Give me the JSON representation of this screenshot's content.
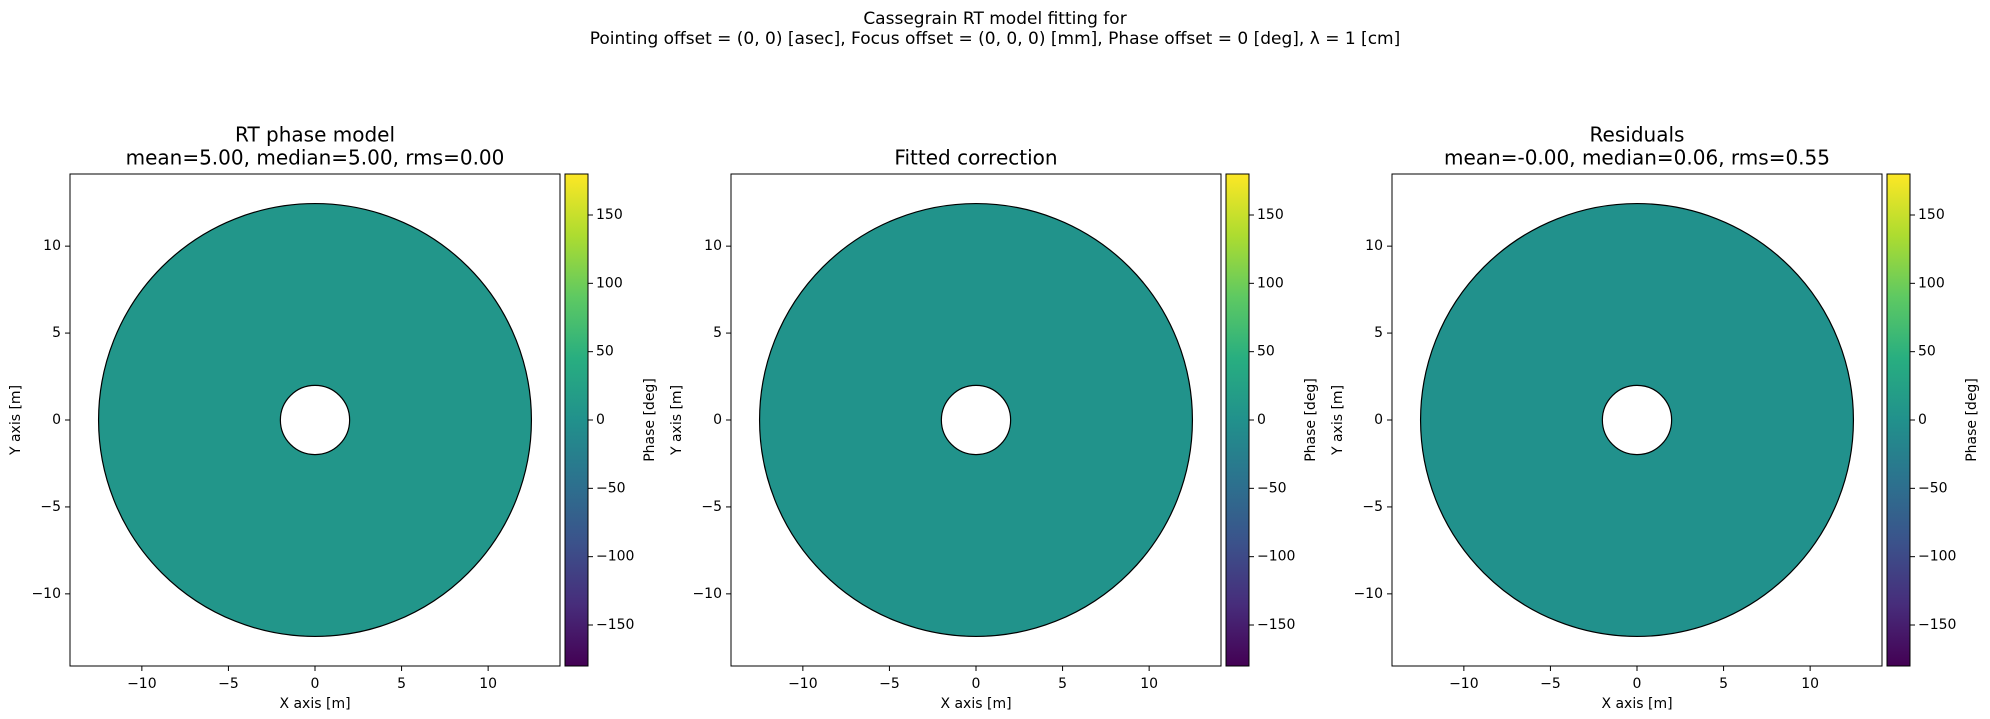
{
  "suptitle": [
    "Cassegrain RT model fitting for",
    "Pointing offset = (0, 0) [asec], Focus offset = (0, 0, 0) [mm], Phase offset = 0 [deg], λ = 1 [cm]"
  ],
  "chart_data": [
    {
      "type": "aperture",
      "title": [
        "RT phase model",
        "mean=5.00, median=5.00, rms=0.00"
      ],
      "xlabel": "X axis [m]",
      "ylabel": "Y axis [m]",
      "xlim": [
        -14.15,
        14.15
      ],
      "ylim": [
        -14.15,
        14.15
      ],
      "xticks": [
        {
          "value": -10,
          "label": "−10"
        },
        {
          "value": -5,
          "label": "−5"
        },
        0,
        5,
        10
      ],
      "yticks": [
        {
          "value": -10,
          "label": "−10"
        },
        {
          "value": -5,
          "label": "−5"
        },
        0,
        5,
        10
      ],
      "outer_radius": 12.5,
      "inner_radius": 2,
      "phase": 8,
      "colorbar_label": "Phase [deg]",
      "clim": [
        -180,
        180
      ],
      "cticks": [
        {
          "value": -150,
          "label": "−150"
        },
        {
          "value": -100,
          "label": "−100"
        },
        {
          "value": -50,
          "label": "−50"
        },
        0,
        50,
        100,
        150
      ],
      "colormap": [
        "#440154",
        "#472d7b",
        "#3b528b",
        "#2c728e",
        "#21918c",
        "#28ae80",
        "#5ec962",
        "#addc30",
        "#fde725"
      ]
    },
    {
      "type": "aperture",
      "title": [
        "Fitted correction"
      ],
      "xlabel": "X axis [m]",
      "ylabel": "Y axis [m]",
      "xlim": [
        -14.15,
        14.15
      ],
      "ylim": [
        -14.15,
        14.15
      ],
      "xticks": [
        {
          "value": -10,
          "label": "−10"
        },
        {
          "value": -5,
          "label": "−5"
        },
        0,
        5,
        10
      ],
      "yticks": [
        {
          "value": -10,
          "label": "−10"
        },
        {
          "value": -5,
          "label": "−5"
        },
        0,
        5,
        10
      ],
      "outer_radius": 12.5,
      "inner_radius": 2,
      "phase": 3,
      "colorbar_label": "Phase [deg]",
      "clim": [
        -180,
        180
      ],
      "cticks": [
        {
          "value": -150,
          "label": "−150"
        },
        {
          "value": -100,
          "label": "−100"
        },
        {
          "value": -50,
          "label": "−50"
        },
        0,
        50,
        100,
        150
      ],
      "colormap": [
        "#440154",
        "#472d7b",
        "#3b528b",
        "#2c728e",
        "#21918c",
        "#28ae80",
        "#5ec962",
        "#addc30",
        "#fde725"
      ]
    },
    {
      "type": "aperture",
      "title": [
        "Residuals",
        "mean=-0.00, median=0.06, rms=0.55"
      ],
      "xlabel": "X axis [m]",
      "ylabel": "Y axis [m]",
      "xlim": [
        -14.15,
        14.15
      ],
      "ylim": [
        -14.15,
        14.15
      ],
      "xticks": [
        {
          "value": -10,
          "label": "−10"
        },
        {
          "value": -5,
          "label": "−5"
        },
        0,
        5,
        10
      ],
      "yticks": [
        {
          "value": -10,
          "label": "−10"
        },
        {
          "value": -5,
          "label": "−5"
        },
        0,
        5,
        10
      ],
      "outer_radius": 12.5,
      "inner_radius": 2,
      "phase": 0,
      "colorbar_label": "Phase [deg]",
      "clim": [
        -180,
        180
      ],
      "cticks": [
        {
          "value": -150,
          "label": "−150"
        },
        {
          "value": -100,
          "label": "−100"
        },
        {
          "value": -50,
          "label": "−50"
        },
        0,
        50,
        100,
        150
      ],
      "colormap": [
        "#440154",
        "#472d7b",
        "#3b528b",
        "#2c728e",
        "#21918c",
        "#28ae80",
        "#5ec962",
        "#addc30",
        "#fde725"
      ]
    }
  ]
}
